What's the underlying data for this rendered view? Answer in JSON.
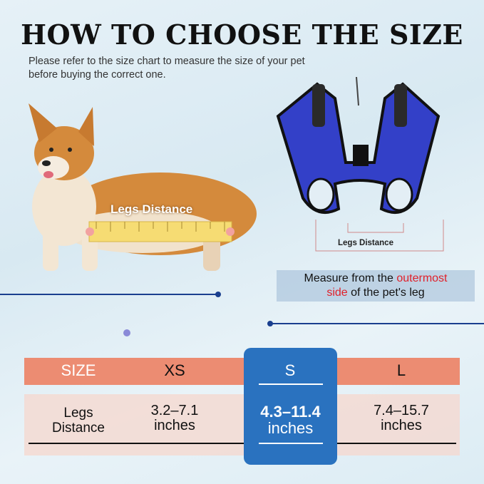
{
  "title": "HOW TO CHOOSE THE SIZE",
  "subtitle": "Please refer to the size chart to measure the size of your pet before buying the correct one.",
  "dog_label": "Legs Distance",
  "harness_label": "Legs Distance",
  "note": {
    "part1": "Measure from the ",
    "highlight1": "outermost",
    "part2": " ",
    "highlight2": "side",
    "part3": " of the pet's leg"
  },
  "colors": {
    "header": "#ec8c72",
    "highlight": "#2a72bf",
    "accent_red": "#e0202a",
    "harness": "#3340c8"
  },
  "table": {
    "headers": [
      "SIZE",
      "XS",
      "S",
      "L"
    ],
    "row": {
      "label_line1": "Legs",
      "label_line2": "Distance",
      "values": [
        {
          "range": "3.2–7.1",
          "unit": "inches"
        },
        {
          "range": "4.3–11.4",
          "unit": "inches"
        },
        {
          "range": "7.4–15.7",
          "unit": "inches"
        }
      ]
    },
    "highlighted": "S"
  }
}
